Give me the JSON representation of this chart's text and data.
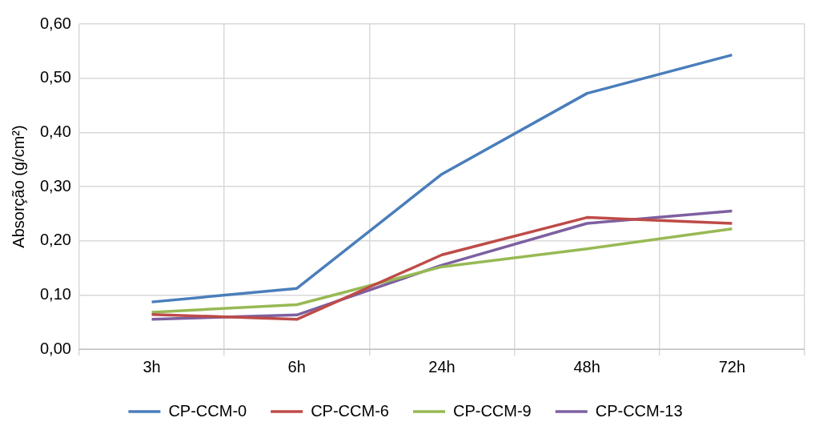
{
  "chart_data": {
    "type": "line",
    "ylabel": "Absorção (g/cm²)",
    "categories": [
      "3h",
      "6h",
      "24h",
      "48h",
      "72h"
    ],
    "series": [
      {
        "name": "CP-CCM-0",
        "color": "#4a7ebb",
        "values": [
          0.087,
          0.112,
          0.323,
          0.472,
          0.543
        ]
      },
      {
        "name": "CP-CCM-6",
        "color": "#be4b48",
        "values": [
          0.064,
          0.055,
          0.174,
          0.243,
          0.232
        ]
      },
      {
        "name": "CP-CCM-9",
        "color": "#98b954",
        "values": [
          0.068,
          0.082,
          0.152,
          0.185,
          0.222
        ]
      },
      {
        "name": "CP-CCM-13",
        "color": "#7d60a0",
        "values": [
          0.055,
          0.063,
          0.155,
          0.232,
          0.255
        ]
      }
    ],
    "ylim": [
      0,
      0.6
    ],
    "yticks": [
      {
        "value": 0,
        "label": "0,00"
      },
      {
        "value": 0.1,
        "label": "0,10"
      },
      {
        "value": 0.2,
        "label": "0,20"
      },
      {
        "value": 0.3,
        "label": "0,30"
      },
      {
        "value": 0.4,
        "label": "0,40"
      },
      {
        "value": 0.5,
        "label": "0,50"
      },
      {
        "value": 0.6,
        "label": "0,60"
      }
    ],
    "grid": true,
    "legend": "bottom",
    "marker": "none",
    "line_style": "solid"
  }
}
